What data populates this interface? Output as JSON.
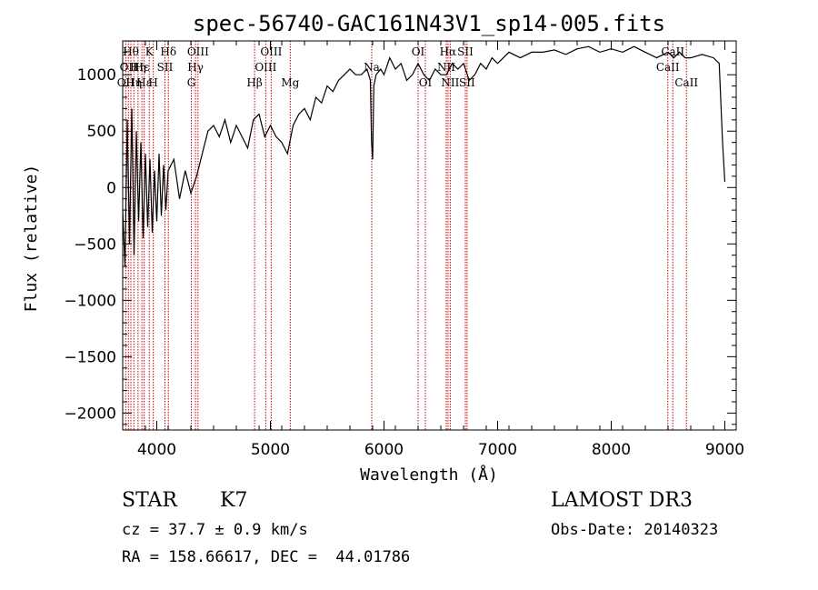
{
  "chart_data": {
    "type": "line",
    "title": "spec-56740-GAC161N43V1_sp14-005.fits",
    "xlabel": "Wavelength (Å)",
    "ylabel": "Flux (relative)",
    "xlim": [
      3700,
      9100
    ],
    "ylim": [
      -2150,
      1300
    ],
    "xticks": [
      4000,
      5000,
      6000,
      7000,
      8000,
      9000
    ],
    "yticks": [
      -2000,
      -1500,
      -1000,
      -500,
      0,
      500,
      1000
    ],
    "xtick_labels": [
      "4000",
      "5000",
      "6000",
      "7000",
      "8000",
      "9000"
    ],
    "ytick_labels": [
      "−2000",
      "−1500",
      "−1000",
      "−500",
      "0",
      "500",
      "1000"
    ],
    "grid": false,
    "line_color": "#000000",
    "marker_color": "#cc0000",
    "series": [
      {
        "name": "flux",
        "x": [
          3700,
          3720,
          3740,
          3760,
          3780,
          3800,
          3820,
          3840,
          3860,
          3880,
          3900,
          3920,
          3940,
          3960,
          3980,
          4000,
          4020,
          4040,
          4060,
          4080,
          4100,
          4150,
          4200,
          4250,
          4300,
          4350,
          4400,
          4450,
          4500,
          4550,
          4600,
          4650,
          4700,
          4750,
          4800,
          4850,
          4900,
          4950,
          5000,
          5050,
          5100,
          5150,
          5200,
          5250,
          5300,
          5350,
          5400,
          5450,
          5500,
          5550,
          5600,
          5650,
          5700,
          5750,
          5800,
          5850,
          5880,
          5890,
          5900,
          5910,
          5930,
          5970,
          6000,
          6050,
          6100,
          6150,
          6200,
          6250,
          6300,
          6350,
          6400,
          6450,
          6500,
          6550,
          6600,
          6650,
          6700,
          6750,
          6800,
          6850,
          6900,
          6950,
          7000,
          7100,
          7200,
          7300,
          7400,
          7500,
          7600,
          7700,
          7800,
          7900,
          8000,
          8100,
          8200,
          8300,
          8400,
          8500,
          8550,
          8600,
          8650,
          8700,
          8800,
          8900,
          8950,
          8980,
          9000
        ],
        "y": [
          -200,
          -700,
          600,
          -500,
          700,
          -600,
          500,
          -300,
          400,
          -450,
          300,
          -350,
          250,
          -400,
          150,
          -300,
          300,
          -250,
          200,
          -200,
          150,
          250,
          -100,
          150,
          -50,
          100,
          300,
          500,
          550,
          450,
          600,
          400,
          550,
          450,
          350,
          600,
          650,
          450,
          550,
          450,
          400,
          300,
          550,
          650,
          700,
          600,
          800,
          750,
          900,
          850,
          950,
          1000,
          1050,
          1000,
          1000,
          1050,
          950,
          400,
          250,
          900,
          1000,
          1050,
          1000,
          1150,
          1050,
          1100,
          950,
          1000,
          1100,
          1000,
          950,
          1050,
          1000,
          1000,
          1100,
          1050,
          1100,
          950,
          1000,
          1100,
          1050,
          1150,
          1100,
          1200,
          1150,
          1200,
          1200,
          1220,
          1180,
          1230,
          1250,
          1200,
          1230,
          1200,
          1250,
          1200,
          1150,
          1200,
          1150,
          1200,
          1150,
          1150,
          1180,
          1150,
          1100,
          400,
          50
        ]
      }
    ],
    "line_markers": [
      {
        "x": 3727,
        "label": "OII",
        "row": 2
      },
      {
        "x": 3750,
        "label": "OII",
        "row": 1
      },
      {
        "x": 3772,
        "label": "Hθ",
        "row": 0
      },
      {
        "x": 3798,
        "label": "Hη",
        "row": 2
      },
      {
        "x": 3835,
        "label": "Hη",
        "row": 1
      },
      {
        "x": 3869,
        "label": "Hε",
        "row": 1
      },
      {
        "x": 3889,
        "label": "Hε",
        "row": 2
      },
      {
        "x": 3934,
        "label": "K",
        "row": 0
      },
      {
        "x": 3969,
        "label": "H",
        "row": 2
      },
      {
        "x": 4072,
        "label": "SII",
        "row": 1
      },
      {
        "x": 4102,
        "label": "Hδ",
        "row": 0
      },
      {
        "x": 4304,
        "label": "G",
        "row": 2
      },
      {
        "x": 4341,
        "label": "Hγ",
        "row": 1
      },
      {
        "x": 4363,
        "label": "OIII",
        "row": 0
      },
      {
        "x": 4861,
        "label": "Hβ",
        "row": 2
      },
      {
        "x": 4959,
        "label": "OIII",
        "row": 1
      },
      {
        "x": 5007,
        "label": "OIII",
        "row": 0
      },
      {
        "x": 5175,
        "label": "Mg",
        "row": 2
      },
      {
        "x": 5892,
        "label": "Na",
        "row": 1
      },
      {
        "x": 6300,
        "label": "OI",
        "row": 0
      },
      {
        "x": 6364,
        "label": "OI",
        "row": 2
      },
      {
        "x": 6548,
        "label": "NII",
        "row": 1
      },
      {
        "x": 6563,
        "label": "Hα",
        "row": 0
      },
      {
        "x": 6583,
        "label": "NII",
        "row": 2
      },
      {
        "x": 6716,
        "label": "SII",
        "row": 0
      },
      {
        "x": 6731,
        "label": "SII",
        "row": 2
      },
      {
        "x": 8498,
        "label": "CaII",
        "row": 1
      },
      {
        "x": 8542,
        "label": "CaII",
        "row": 0
      },
      {
        "x": 8662,
        "label": "CaII",
        "row": 2
      }
    ]
  },
  "info": {
    "object_class": "STAR",
    "subclass": "K7",
    "survey": "LAMOST DR3",
    "redshift": "cz = 37.7 ± 0.9 km/s",
    "obs_date": "Obs-Date: 20140323",
    "coords": "RA = 158.66617, DEC =  44.01786"
  }
}
